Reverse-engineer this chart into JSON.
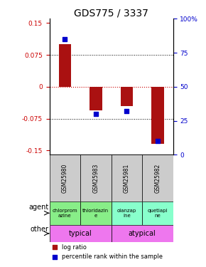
{
  "title": "GDS775 / 3337",
  "samples": [
    "GSM25980",
    "GSM25983",
    "GSM25981",
    "GSM25982"
  ],
  "log_ratios": [
    0.1,
    -0.055,
    -0.045,
    -0.135
  ],
  "percentile_ranks": [
    85,
    30,
    32,
    10
  ],
  "ylim_left": [
    -0.16,
    0.16
  ],
  "yticks_left": [
    -0.15,
    -0.075,
    0,
    0.075,
    0.15
  ],
  "ytick_labels_left": [
    "-0.15",
    "-0.075",
    "0",
    "0.075",
    "0.15"
  ],
  "ylim_right": [
    0,
    100
  ],
  "yticks_right": [
    0,
    25,
    50,
    75,
    100
  ],
  "ytick_labels_right": [
    "0",
    "25",
    "50",
    "75",
    "100%"
  ],
  "agents": [
    "chlorprom\nazine",
    "thioridazin\ne",
    "olanzap\nine",
    "quetiapi\nne"
  ],
  "agent_colors": [
    "#88ee88",
    "#88ee88",
    "#88ffcc",
    "#88ffcc"
  ],
  "other_labels": [
    "typical",
    "atypical"
  ],
  "other_color": "#ee77ee",
  "bar_color": "#aa1111",
  "dot_color": "#0000cc",
  "bar_width": 0.4,
  "dot_size": 25,
  "grid_color": "#000000",
  "zero_line_color": "#cc0000",
  "background_color": "#ffffff",
  "title_fontsize": 10,
  "tick_fontsize": 6.5,
  "sample_fontsize": 5.5,
  "agent_fontsize": 5,
  "other_fontsize": 7,
  "legend_fontsize": 6
}
